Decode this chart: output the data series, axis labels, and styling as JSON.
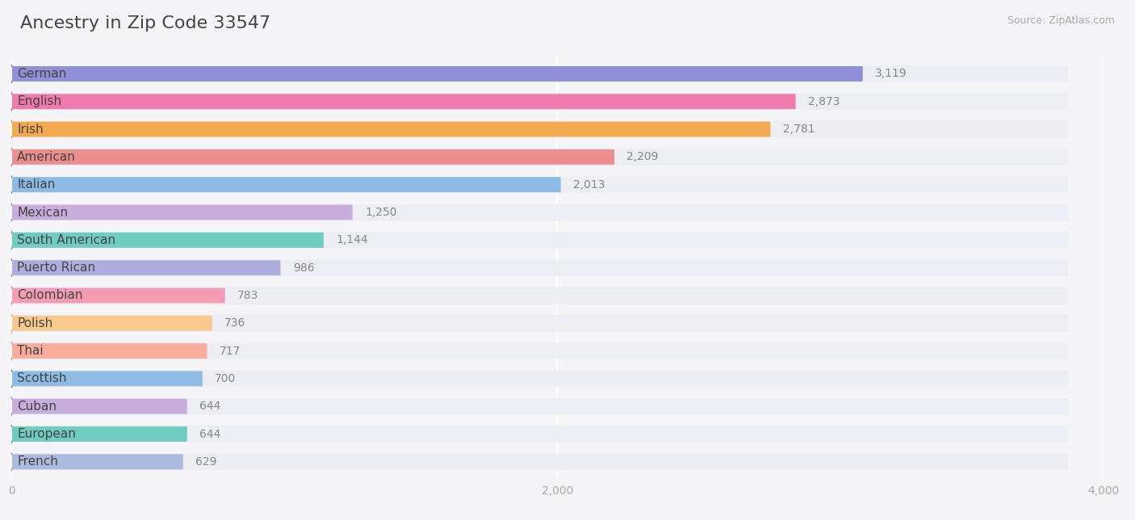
{
  "title": "Ancestry in Zip Code 33547",
  "source_text": "Source: ZipAtlas.com",
  "categories": [
    "German",
    "English",
    "Irish",
    "American",
    "Italian",
    "Mexican",
    "South American",
    "Puerto Rican",
    "Colombian",
    "Polish",
    "Thai",
    "Scottish",
    "Cuban",
    "European",
    "French"
  ],
  "values": [
    3119,
    2873,
    2781,
    2209,
    2013,
    1250,
    1144,
    986,
    783,
    736,
    717,
    700,
    644,
    644,
    629
  ],
  "bar_colors": [
    "#9090D8",
    "#F07AAC",
    "#F4AA50",
    "#EC8E8E",
    "#8BBCE6",
    "#C8AEDC",
    "#6ECCC0",
    "#AEAEDE",
    "#F49CB4",
    "#F8C88C",
    "#F8AC9C",
    "#8CBCE4",
    "#C8AEDC",
    "#6ECCC0",
    "#ACBADF"
  ],
  "icon_colors": [
    "#6060B8",
    "#E0306A",
    "#E08820",
    "#D85555",
    "#4888C8",
    "#9868B8",
    "#269888",
    "#7070B8",
    "#E05888",
    "#E09830",
    "#E07070",
    "#4080B8",
    "#9060B0",
    "#269888",
    "#7080B8"
  ],
  "row_bg_color": "#ededf4",
  "background_color": "#f5f5f8",
  "xlim_max": 4000,
  "xticks": [
    0,
    2000,
    4000
  ],
  "title_fontsize": 16,
  "label_fontsize": 11,
  "value_fontsize": 10
}
